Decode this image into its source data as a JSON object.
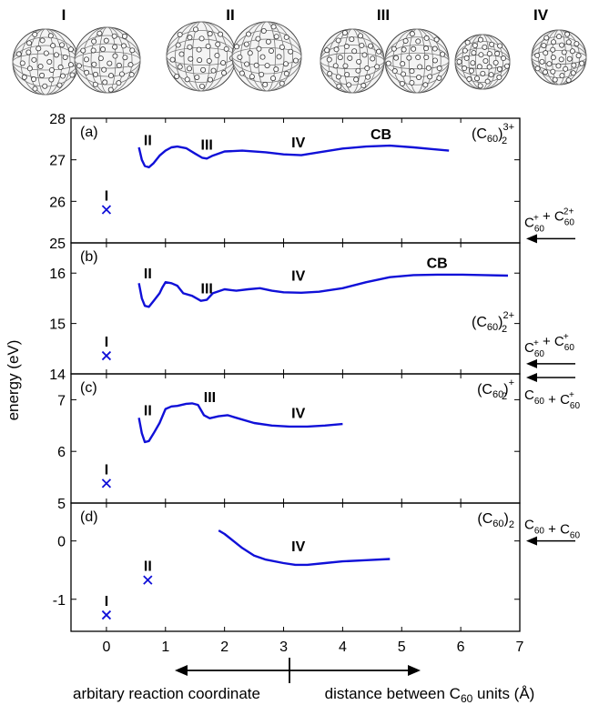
{
  "structure_labels": [
    "I",
    "II",
    "III",
    "IV"
  ],
  "x_axis": {
    "ticks": [
      0,
      1,
      2,
      3,
      4,
      5,
      6,
      7
    ],
    "range": [
      -0.6,
      7
    ],
    "left_caption": "arbitary reaction coordinate",
    "right_caption_pre": "distance between C",
    "right_caption_sub": "60",
    "right_caption_post": " units (Å)"
  },
  "y_axis_label": "energy (eV)",
  "colors": {
    "curve": "#1010d8",
    "axis": "#000000"
  },
  "chart_data": [
    {
      "type": "line",
      "panel_label": "(a)",
      "species": {
        "base": "(C",
        "sub": "60",
        "close": ")",
        "sub2": "2",
        "sup": "3+"
      },
      "ylim": [
        25,
        28
      ],
      "yticks": [
        25,
        26,
        27,
        28
      ],
      "curve": [
        [
          0.55,
          27.3
        ],
        [
          0.6,
          27.0
        ],
        [
          0.65,
          26.85
        ],
        [
          0.72,
          26.82
        ],
        [
          0.8,
          26.92
        ],
        [
          0.9,
          27.1
        ],
        [
          1.0,
          27.22
        ],
        [
          1.1,
          27.3
        ],
        [
          1.2,
          27.32
        ],
        [
          1.35,
          27.28
        ],
        [
          1.5,
          27.15
        ],
        [
          1.62,
          27.05
        ],
        [
          1.7,
          27.03
        ],
        [
          1.8,
          27.1
        ],
        [
          2.0,
          27.2
        ],
        [
          2.3,
          27.22
        ],
        [
          2.7,
          27.18
        ],
        [
          3.0,
          27.13
        ],
        [
          3.3,
          27.11
        ],
        [
          3.6,
          27.18
        ],
        [
          4.0,
          27.27
        ],
        [
          4.4,
          27.32
        ],
        [
          4.8,
          27.34
        ],
        [
          5.2,
          27.3
        ],
        [
          5.5,
          27.26
        ],
        [
          5.8,
          27.22
        ]
      ],
      "crosses": [
        {
          "x": 0.0,
          "y": 25.8,
          "label": "I"
        }
      ],
      "annotations": [
        {
          "text": "II",
          "x": 0.7,
          "y": 27.35
        },
        {
          "text": "III",
          "x": 1.7,
          "y": 27.25
        },
        {
          "text": "IV",
          "x": 3.25,
          "y": 27.3
        },
        {
          "text": "CB",
          "x": 4.65,
          "y": 27.5
        }
      ],
      "asymptote": {
        "text": "C60+ + C60 2+",
        "y": 25.1
      }
    },
    {
      "type": "line",
      "panel_label": "(b)",
      "species": {
        "base": "(C",
        "sub": "60",
        "close": ")",
        "sub2": "2",
        "sup": "2+"
      },
      "ylim": [
        14,
        16.6
      ],
      "yticks": [
        14,
        15,
        16
      ],
      "curve": [
        [
          0.55,
          15.8
        ],
        [
          0.6,
          15.5
        ],
        [
          0.65,
          15.35
        ],
        [
          0.72,
          15.33
        ],
        [
          0.8,
          15.45
        ],
        [
          0.9,
          15.6
        ],
        [
          0.95,
          15.72
        ],
        [
          1.0,
          15.82
        ],
        [
          1.1,
          15.8
        ],
        [
          1.2,
          15.75
        ],
        [
          1.3,
          15.6
        ],
        [
          1.45,
          15.55
        ],
        [
          1.6,
          15.45
        ],
        [
          1.7,
          15.47
        ],
        [
          1.8,
          15.6
        ],
        [
          2.0,
          15.68
        ],
        [
          2.2,
          15.65
        ],
        [
          2.4,
          15.68
        ],
        [
          2.6,
          15.7
        ],
        [
          2.8,
          15.65
        ],
        [
          3.0,
          15.62
        ],
        [
          3.3,
          15.61
        ],
        [
          3.6,
          15.63
        ],
        [
          4.0,
          15.7
        ],
        [
          4.4,
          15.82
        ],
        [
          4.8,
          15.92
        ],
        [
          5.2,
          15.96
        ],
        [
          5.6,
          15.97
        ],
        [
          6.0,
          15.97
        ],
        [
          6.4,
          15.96
        ],
        [
          6.8,
          15.95
        ]
      ],
      "crosses": [
        {
          "x": 0.0,
          "y": 14.36,
          "label": "I"
        }
      ],
      "annotations": [
        {
          "text": "II",
          "x": 0.7,
          "y": 15.9
        },
        {
          "text": "III",
          "x": 1.7,
          "y": 15.6
        },
        {
          "text": "IV",
          "x": 3.25,
          "y": 15.85
        },
        {
          "text": "CB",
          "x": 5.6,
          "y": 16.1
        }
      ],
      "asymptote": {
        "text": "C60+ + C60+",
        "y": 14.2
      }
    },
    {
      "type": "line",
      "panel_label": "(c)",
      "species": {
        "base": "(C",
        "sub": "60",
        "close": ")",
        "sub2": "2",
        "sup": "+"
      },
      "ylim": [
        5,
        7.5
      ],
      "yticks": [
        5,
        6,
        7
      ],
      "curve": [
        [
          0.55,
          6.65
        ],
        [
          0.6,
          6.35
        ],
        [
          0.65,
          6.18
        ],
        [
          0.72,
          6.2
        ],
        [
          0.8,
          6.35
        ],
        [
          0.9,
          6.55
        ],
        [
          1.0,
          6.82
        ],
        [
          1.1,
          6.87
        ],
        [
          1.2,
          6.88
        ],
        [
          1.35,
          6.92
        ],
        [
          1.45,
          6.93
        ],
        [
          1.55,
          6.9
        ],
        [
          1.65,
          6.7
        ],
        [
          1.75,
          6.64
        ],
        [
          1.9,
          6.68
        ],
        [
          2.05,
          6.7
        ],
        [
          2.2,
          6.65
        ],
        [
          2.5,
          6.55
        ],
        [
          2.8,
          6.5
        ],
        [
          3.1,
          6.48
        ],
        [
          3.4,
          6.48
        ],
        [
          3.7,
          6.5
        ],
        [
          4.0,
          6.53
        ]
      ],
      "crosses": [
        {
          "x": 0.0,
          "y": 5.38,
          "label": "I"
        }
      ],
      "annotations": [
        {
          "text": "II",
          "x": 0.7,
          "y": 6.7
        },
        {
          "text": "III",
          "x": 1.75,
          "y": 6.95
        },
        {
          "text": "IV",
          "x": 3.25,
          "y": 6.65
        }
      ],
      "asymptote": {
        "text": "C60 + C60+",
        "y": 7.43
      }
    },
    {
      "type": "line",
      "panel_label": "(d)",
      "species": {
        "base": "(C",
        "sub": "60",
        "close": ")",
        "sub2": "2",
        "sup": ""
      },
      "ylim": [
        -1.55,
        0.65
      ],
      "yticks": [
        -1,
        0
      ],
      "curve": [
        [
          1.9,
          0.18
        ],
        [
          2.0,
          0.12
        ],
        [
          2.15,
          0.0
        ],
        [
          2.3,
          -0.12
        ],
        [
          2.5,
          -0.25
        ],
        [
          2.7,
          -0.32
        ],
        [
          3.0,
          -0.38
        ],
        [
          3.2,
          -0.41
        ],
        [
          3.4,
          -0.41
        ],
        [
          3.7,
          -0.38
        ],
        [
          4.0,
          -0.35
        ],
        [
          4.4,
          -0.33
        ],
        [
          4.8,
          -0.31
        ]
      ],
      "crosses": [
        {
          "x": 0.0,
          "y": -1.27,
          "label": "I"
        },
        {
          "x": 0.7,
          "y": -0.67,
          "label": "II"
        }
      ],
      "annotations": [
        {
          "text": "IV",
          "x": 3.25,
          "y": -0.18
        }
      ],
      "asymptote": {
        "text": "C60 + C60",
        "y": 0.0
      }
    }
  ]
}
